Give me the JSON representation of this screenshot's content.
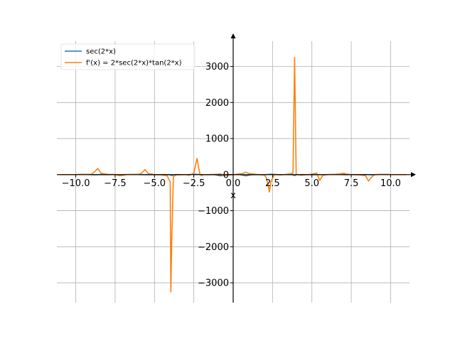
{
  "chart_data": {
    "type": "line",
    "title": "",
    "xlabel": "x",
    "ylabel": "",
    "xlim": [
      -11.2,
      11.2
    ],
    "ylim": [
      -3550,
      3700
    ],
    "grid": true,
    "legend_position": "top-left",
    "x_ticks": [
      -10,
      -7.5,
      -5,
      -2.5,
      0,
      2.5,
      5,
      7.5,
      10
    ],
    "x_tick_labels": [
      "−10.0",
      "−7.5",
      "−5.0",
      "−2.5",
      "0.0",
      "2.5",
      "5.0",
      "7.5",
      "10.0"
    ],
    "y_ticks": [
      -3000,
      -2000,
      -1000,
      0,
      1000,
      2000,
      3000
    ],
    "y_tick_labels": [
      "−3000",
      "−2000",
      "−1000",
      "0",
      "1000",
      "2000",
      "3000"
    ],
    "series": [
      {
        "name": "sec(2*x)",
        "color": "#1f77b4",
        "x": [
          -10,
          -9.6,
          -9.2,
          -8.8,
          -8.4,
          -8.0,
          -7.6,
          -7.2,
          -6.8,
          -6.4,
          -6.0,
          -5.6,
          -5.2,
          -4.8,
          -4.4,
          -4.0,
          -3.9,
          -3.8,
          -3.6,
          -3.2,
          -2.8,
          -2.4,
          -2.0,
          -1.6,
          -1.2,
          -0.8,
          -0.4,
          0.0,
          0.4,
          0.8,
          1.2,
          1.6,
          2.0,
          2.4,
          2.8,
          3.2,
          3.6,
          3.8,
          3.9,
          4.0,
          4.4,
          4.8,
          5.2,
          5.6,
          6.0,
          6.4,
          6.8,
          7.2,
          7.6,
          8.0,
          8.4,
          8.8,
          9.2,
          9.6,
          10.0
        ],
        "y": [
          2.4,
          3.1,
          1.6,
          -5,
          1.4,
          -1.0,
          1.2,
          -3.8,
          1.9,
          1.4,
          1.2,
          -3.5,
          -1.7,
          -1.0,
          1.3,
          -6,
          -25,
          -6,
          1.9,
          1.0,
          1.3,
          10.0,
          -1.5,
          -1.0,
          -1.4,
          -34,
          1.4,
          1.0,
          1.4,
          -34,
          -1.4,
          -1.0,
          -1.5,
          10.0,
          1.3,
          1.0,
          1.9,
          -6,
          -25,
          -6,
          1.3,
          -1.0,
          -1.7,
          -3.5,
          1.2,
          1.4,
          1.9,
          -3.8,
          1.2,
          -1.0,
          1.4,
          -5,
          1.6,
          3.1,
          2.4
        ]
      },
      {
        "name": "f'(x) = 2*sec(2*x)*tan(2*x)",
        "color": "#ff7f0e",
        "x": [
          -11.0,
          -10.0,
          -9.5,
          -9.0,
          -8.8,
          -8.6,
          -8.4,
          -8.0,
          -7.5,
          -7.2,
          -7.0,
          -6.8,
          -6.0,
          -5.8,
          -5.6,
          -5.4,
          -5.0,
          -4.6,
          -4.2,
          -4.0,
          -3.96,
          -3.9,
          -3.8,
          -3.6,
          -3.0,
          -2.8,
          -2.5,
          -2.3,
          -2.2,
          -2.1,
          -2.0,
          -1.9,
          -1.6,
          -1.0,
          -0.8,
          -0.6,
          -0.2,
          0.0,
          0.2,
          0.6,
          0.8,
          1.0,
          1.6,
          2.0,
          2.1,
          2.2,
          2.3,
          2.4,
          2.6,
          3.0,
          3.6,
          3.8,
          3.9,
          4.0,
          4.3,
          4.8,
          5.3,
          5.5,
          5.7,
          6.0,
          6.5,
          6.8,
          7.0,
          7.2,
          7.5,
          8.0,
          8.4,
          8.6,
          8.8,
          9.0,
          9.5,
          10.0,
          11.0
        ],
        "y": [
          0,
          0,
          5,
          10,
          80,
          170,
          40,
          10,
          0,
          -30,
          -20,
          0,
          10,
          50,
          140,
          30,
          0,
          -10,
          -30,
          -200,
          -3250,
          -1800,
          -50,
          -10,
          0,
          -20,
          40,
          450,
          200,
          0,
          -30,
          0,
          0,
          10,
          20,
          -30,
          -10,
          0,
          10,
          30,
          70,
          30,
          0,
          -20,
          -80,
          -250,
          -480,
          -200,
          0,
          -10,
          20,
          40,
          3250,
          10,
          -20,
          0,
          40,
          -160,
          -20,
          0,
          10,
          20,
          40,
          15,
          0,
          -10,
          -30,
          -180,
          -60,
          0,
          5,
          0,
          0
        ]
      }
    ]
  }
}
